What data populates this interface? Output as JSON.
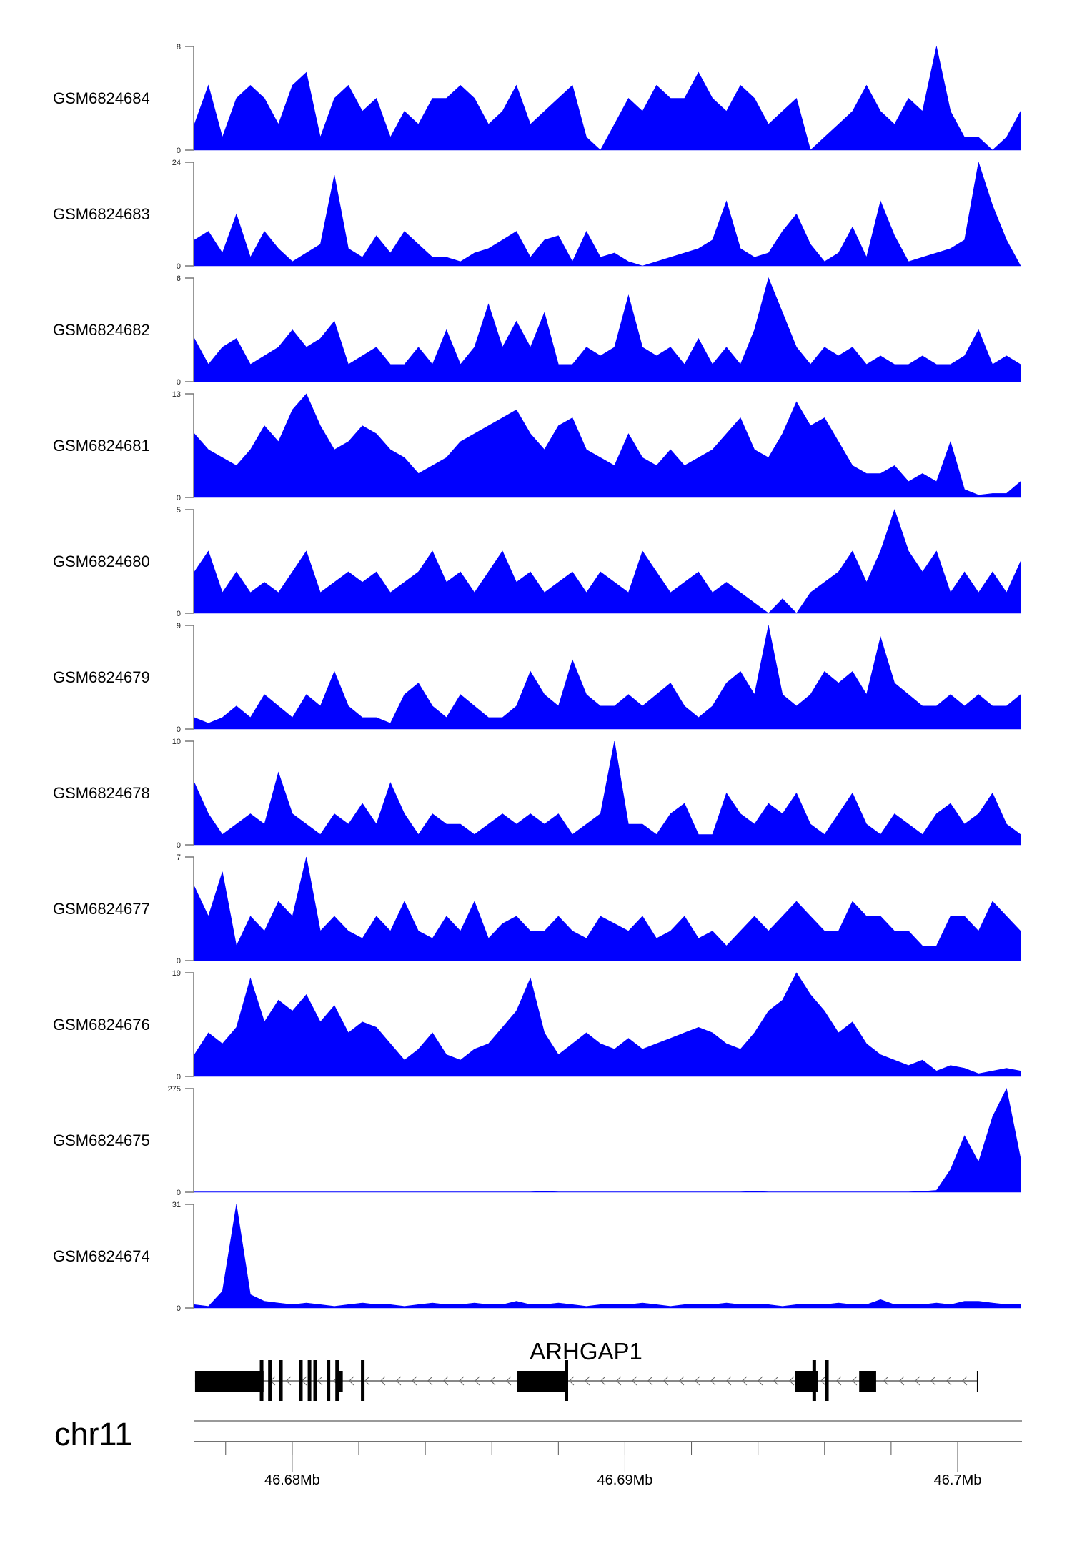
{
  "chart_data": {
    "type": "area",
    "title": "",
    "fill_color": "#0000ff",
    "xlabel": "",
    "chromosome": "chr11",
    "xlim_mb": [
      46.67706,
      46.70189
    ],
    "x_ticks_major": [
      {
        "value": 46.68,
        "label": "46.68Mb"
      },
      {
        "value": 46.69,
        "label": "46.69Mb"
      },
      {
        "value": 46.7,
        "label": "46.7Mb"
      }
    ],
    "x_tick_minor_step_mb": 0.002,
    "tracks": [
      {
        "name": "GSM6824684",
        "ylim": [
          0,
          8
        ],
        "tick_labels": [
          "0",
          "8"
        ],
        "values": [
          2,
          5,
          1,
          4,
          5,
          4,
          2,
          5,
          6,
          1,
          4,
          5,
          3,
          4,
          1,
          3,
          2,
          4,
          4,
          5,
          4,
          2,
          3,
          5,
          2,
          3,
          4,
          5,
          1,
          0,
          2,
          4,
          3,
          5,
          4,
          4,
          6,
          4,
          3,
          5,
          4,
          2,
          3,
          4,
          0,
          1,
          2,
          3,
          5,
          3,
          2,
          4,
          3,
          8,
          3,
          1,
          1,
          0,
          1,
          3
        ]
      },
      {
        "name": "GSM6824683",
        "ylim": [
          0,
          24
        ],
        "tick_labels": [
          "0",
          "24"
        ],
        "values": [
          6,
          8,
          3,
          12,
          2,
          8,
          4,
          1,
          3,
          5,
          21,
          4,
          2,
          7,
          3,
          8,
          5,
          2,
          2,
          1,
          3,
          4,
          6,
          8,
          2,
          6,
          7,
          1,
          8,
          2,
          3,
          1,
          0,
          1,
          2,
          3,
          4,
          6,
          15,
          4,
          2,
          3,
          8,
          12,
          5,
          1,
          3,
          9,
          2,
          15,
          7,
          1,
          2,
          3,
          4,
          6,
          24,
          14,
          6,
          0
        ]
      },
      {
        "name": "GSM6824682",
        "ylim": [
          0,
          6
        ],
        "tick_labels": [
          "0",
          "6"
        ],
        "values": [
          2.5,
          1,
          2,
          2.5,
          1,
          1.5,
          2,
          3,
          2,
          2.5,
          3.5,
          1,
          1.5,
          2,
          1,
          1,
          2,
          1,
          3,
          1,
          2,
          4.5,
          2,
          3.5,
          2,
          4,
          1,
          1,
          2,
          1.5,
          2,
          5,
          2,
          1.5,
          2,
          1,
          2.5,
          1,
          2,
          1,
          3,
          6,
          4,
          2,
          1,
          2,
          1.5,
          2,
          1,
          1.5,
          1,
          1,
          1.5,
          1,
          1,
          1.5,
          3,
          1,
          1.5,
          1
        ]
      },
      {
        "name": "GSM6824681",
        "ylim": [
          0,
          13
        ],
        "tick_labels": [
          "0",
          "13"
        ],
        "values": [
          8,
          6,
          5,
          4,
          6,
          9,
          7,
          11,
          13,
          9,
          6,
          7,
          9,
          8,
          6,
          5,
          3,
          4,
          5,
          7,
          8,
          9,
          10,
          11,
          8,
          6,
          9,
          10,
          6,
          5,
          4,
          8,
          5,
          4,
          6,
          4,
          5,
          6,
          8,
          10,
          6,
          5,
          8,
          12,
          9,
          10,
          7,
          4,
          3,
          3,
          4,
          2,
          3,
          2,
          7,
          1,
          0.3,
          0.5,
          0.5,
          2
        ]
      },
      {
        "name": "GSM6824680",
        "ylim": [
          0,
          5
        ],
        "tick_labels": [
          "0",
          "5"
        ],
        "values": [
          2,
          3,
          1,
          2,
          1,
          1.5,
          1,
          2,
          3,
          1,
          1.5,
          2,
          1.5,
          2,
          1,
          1.5,
          2,
          3,
          1.5,
          2,
          1,
          2,
          3,
          1.5,
          2,
          1,
          1.5,
          2,
          1,
          2,
          1.5,
          1,
          3,
          2,
          1,
          1.5,
          2,
          1,
          1.5,
          1,
          0.5,
          0,
          0.7,
          0,
          1,
          1.5,
          2,
          3,
          1.5,
          3,
          5,
          3,
          2,
          3,
          1,
          2,
          1,
          2,
          1,
          2.5
        ]
      },
      {
        "name": "GSM6824679",
        "ylim": [
          0,
          9
        ],
        "tick_labels": [
          "0",
          "9"
        ],
        "values": [
          1,
          0.5,
          1,
          2,
          1,
          3,
          2,
          1,
          3,
          2,
          5,
          2,
          1,
          1,
          0.5,
          3,
          4,
          2,
          1,
          3,
          2,
          1,
          1,
          2,
          5,
          3,
          2,
          6,
          3,
          2,
          2,
          3,
          2,
          3,
          4,
          2,
          1,
          2,
          4,
          5,
          3,
          9,
          3,
          2,
          3,
          5,
          4,
          5,
          3,
          8,
          4,
          3,
          2,
          2,
          3,
          2,
          3,
          2,
          2,
          3
        ]
      },
      {
        "name": "GSM6824678",
        "ylim": [
          0,
          10
        ],
        "tick_labels": [
          "0",
          "10"
        ],
        "values": [
          6,
          3,
          1,
          2,
          3,
          2,
          7,
          3,
          2,
          1,
          3,
          2,
          4,
          2,
          6,
          3,
          1,
          3,
          2,
          2,
          1,
          2,
          3,
          2,
          3,
          2,
          3,
          1,
          2,
          3,
          10,
          2,
          2,
          1,
          3,
          4,
          1,
          1,
          5,
          3,
          2,
          4,
          3,
          5,
          2,
          1,
          3,
          5,
          2,
          1,
          3,
          2,
          1,
          3,
          4,
          2,
          3,
          5,
          2,
          1
        ]
      },
      {
        "name": "GSM6824677",
        "ylim": [
          0,
          7
        ],
        "tick_labels": [
          "0",
          "7"
        ],
        "values": [
          5,
          3,
          6,
          1,
          3,
          2,
          4,
          3,
          7,
          2,
          3,
          2,
          1.5,
          3,
          2,
          4,
          2,
          1.5,
          3,
          2,
          4,
          1.5,
          2.5,
          3,
          2,
          2,
          3,
          2,
          1.5,
          3,
          2.5,
          2,
          3,
          1.5,
          2,
          3,
          1.5,
          2,
          1,
          2,
          3,
          2,
          3,
          4,
          3,
          2,
          2,
          4,
          3,
          3,
          2,
          2,
          1,
          1,
          3,
          3,
          2,
          4,
          3,
          2
        ]
      },
      {
        "name": "GSM6824676",
        "ylim": [
          0,
          19
        ],
        "tick_labels": [
          "0",
          "19"
        ],
        "values": [
          4,
          8,
          6,
          9,
          18,
          10,
          14,
          12,
          15,
          10,
          13,
          8,
          10,
          9,
          6,
          3,
          5,
          8,
          4,
          3,
          5,
          6,
          9,
          12,
          18,
          8,
          4,
          6,
          8,
          6,
          5,
          7,
          5,
          6,
          7,
          8,
          9,
          8,
          6,
          5,
          8,
          12,
          14,
          19,
          15,
          12,
          8,
          10,
          6,
          4,
          3,
          2,
          3,
          1,
          2,
          1.5,
          0.5,
          1,
          1.5,
          1
        ]
      },
      {
        "name": "GSM6824675",
        "ylim": [
          0,
          275
        ],
        "tick_labels": [
          "0",
          "275"
        ],
        "values": [
          1,
          1,
          1,
          1,
          1,
          1,
          1,
          1,
          1,
          1,
          1,
          1,
          1,
          1,
          1,
          1,
          1,
          1,
          1,
          1,
          1,
          1,
          1,
          1,
          1,
          2,
          1,
          1,
          1,
          1,
          1,
          1,
          1,
          1,
          1,
          1,
          1,
          1,
          1,
          1,
          2,
          1,
          1,
          1,
          1,
          1,
          1,
          1,
          1,
          1,
          1,
          1,
          2,
          5,
          60,
          150,
          80,
          200,
          275,
          90
        ]
      },
      {
        "name": "GSM6824674",
        "ylim": [
          0,
          31
        ],
        "tick_labels": [
          "0",
          "31"
        ],
        "values": [
          1,
          0.5,
          5,
          31,
          4,
          2,
          1.5,
          1,
          1.5,
          1,
          0.5,
          1,
          1.5,
          1,
          1,
          0.5,
          1,
          1.5,
          1,
          1,
          1.5,
          1,
          1,
          2,
          1,
          1,
          1.5,
          1,
          0.5,
          1,
          1,
          1,
          1.5,
          1,
          0.5,
          1,
          1,
          1,
          1.5,
          1,
          1,
          1,
          0.5,
          1,
          1,
          1,
          1.5,
          1,
          1,
          2.5,
          1,
          1,
          1,
          1.5,
          1,
          2,
          2,
          1.5,
          1,
          1
        ]
      }
    ],
    "gene": {
      "name": "ARHGAP1",
      "strand": "-",
      "start_mb": 46.67708,
      "end_mb": 46.7006,
      "utr_blocks_mb": [
        [
          46.67708,
          46.67914
        ],
        [
          46.68131,
          46.68152
        ],
        [
          46.68676,
          46.68824
        ],
        [
          46.69511,
          46.69579
        ],
        [
          46.69704,
          46.69755
        ]
      ],
      "coding_exons_mb": [
        46.67908,
        46.67933,
        46.67966,
        46.68026,
        46.68052,
        46.68069,
        46.68109,
        46.68135,
        46.68212,
        46.68824,
        46.69569,
        46.69607,
        46.7006
      ]
    }
  }
}
